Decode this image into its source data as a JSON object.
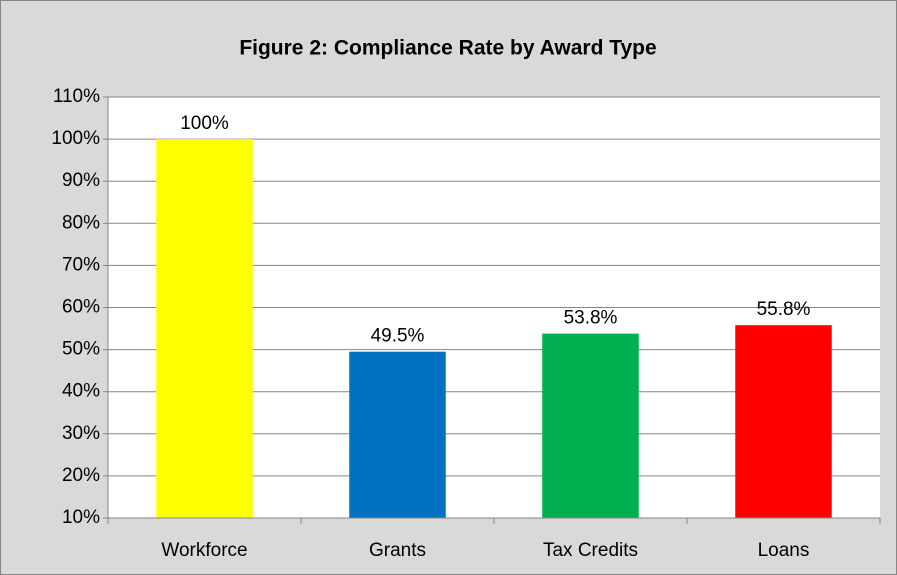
{
  "chart_data": {
    "type": "bar",
    "title": "Figure 2:  Compliance Rate by Award Type",
    "categories": [
      "Workforce",
      "Grants",
      "Tax Credits",
      "Loans"
    ],
    "values": [
      100,
      49.5,
      53.8,
      55.8
    ],
    "value_labels": [
      "100%",
      "49.5%",
      "53.8%",
      "55.8%"
    ],
    "colors": [
      "#ffff00",
      "#0070c0",
      "#00b050",
      "#ff0000"
    ],
    "ylim": [
      10,
      110
    ],
    "yticks": [
      {
        "value": 10,
        "label": "10%"
      },
      {
        "value": 20,
        "label": "20%"
      },
      {
        "value": 30,
        "label": "30%"
      },
      {
        "value": 40,
        "label": "40%"
      },
      {
        "value": 50,
        "label": "50%"
      },
      {
        "value": 60,
        "label": "60%"
      },
      {
        "value": 70,
        "label": "70%"
      },
      {
        "value": 80,
        "label": "80%"
      },
      {
        "value": 90,
        "label": "90%"
      },
      {
        "value": 100,
        "label": "100%"
      },
      {
        "value": 110,
        "label": "110%"
      }
    ],
    "grid": true
  }
}
